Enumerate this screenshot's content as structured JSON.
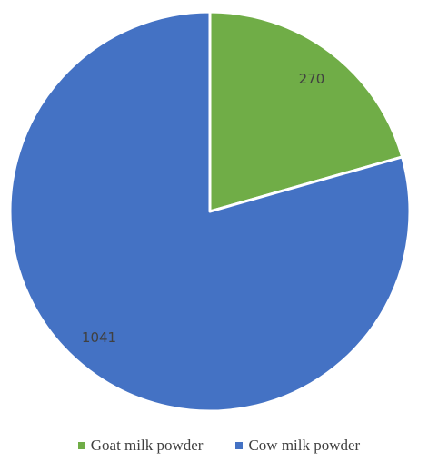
{
  "chart_data": {
    "type": "pie",
    "title": "",
    "slices": [
      {
        "label": "Goat milk powder",
        "value": 270,
        "color": "#70AD47",
        "data_label": "270"
      },
      {
        "label": "Cow milk powder",
        "value": 1041,
        "color": "#4472C4",
        "data_label": "1041"
      }
    ],
    "start_angle_deg": 0,
    "direction": "clockwise",
    "legend_position": "bottom",
    "slice_border_color": "#ffffff"
  }
}
